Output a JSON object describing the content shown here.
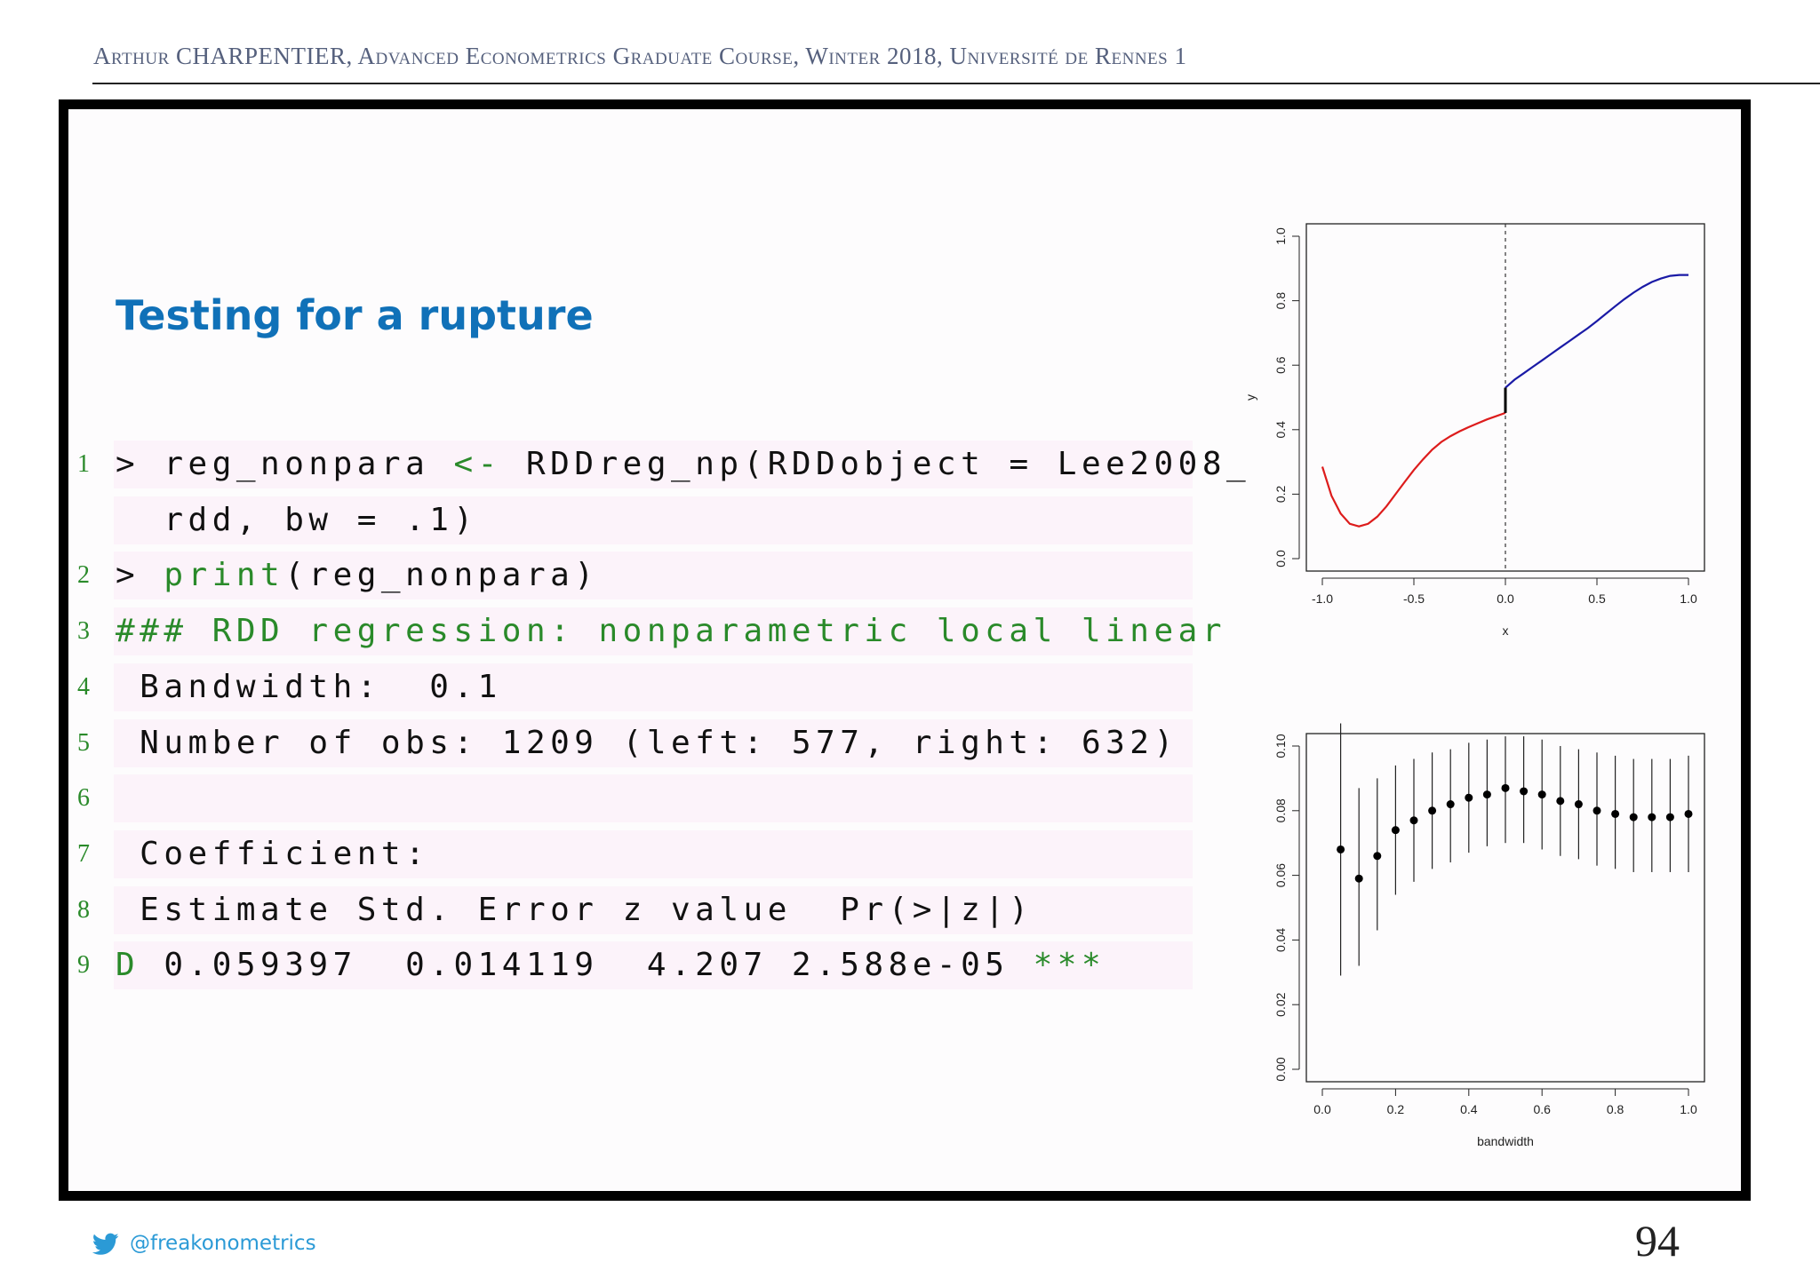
{
  "header": {
    "text": "Arthur CHARPENTIER, Advanced Econometrics Graduate Course, Winter 2018, Université de Rennes 1"
  },
  "slide": {
    "title": "Testing for a rupture"
  },
  "code": {
    "lines": [
      {
        "number": "1",
        "segments": [
          {
            "t": "> reg_nonpara ",
            "c": "plain"
          },
          {
            "t": "<-",
            "c": "kw"
          },
          {
            "t": " RDDreg_np(RDDobject = Lee2008_",
            "c": "plain"
          }
        ]
      },
      {
        "number": "",
        "segments": [
          {
            "t": "  rdd, bw = .1)",
            "c": "plain"
          }
        ]
      },
      {
        "number": "2",
        "segments": [
          {
            "t": "> ",
            "c": "plain"
          },
          {
            "t": "print",
            "c": "kw"
          },
          {
            "t": "(reg_nonpara)",
            "c": "plain"
          }
        ]
      },
      {
        "number": "3",
        "segments": [
          {
            "t": "### RDD regression: nonparametric local linear",
            "c": "cm"
          }
        ]
      },
      {
        "number": "4",
        "segments": [
          {
            "t": " Bandwidth:  0.1",
            "c": "plain"
          }
        ]
      },
      {
        "number": "5",
        "segments": [
          {
            "t": " Number of obs: 1209 (left: 577, right: 632)",
            "c": "plain"
          }
        ]
      },
      {
        "number": "6",
        "segments": []
      },
      {
        "number": "7",
        "segments": [
          {
            "t": " Coefficient:",
            "c": "plain"
          }
        ]
      },
      {
        "number": "8",
        "segments": [
          {
            "t": " Estimate Std. Error z value  Pr(>|z|)",
            "c": "plain"
          }
        ]
      },
      {
        "number": "9",
        "segments": [
          {
            "t": "D",
            "c": "kw"
          },
          {
            "t": " 0.059397  0.014119  4.207 2.588e-05 ",
            "c": "plain"
          },
          {
            "t": "***",
            "c": "kw"
          }
        ]
      }
    ]
  },
  "colors": {
    "left_curve": "#dd1c1c",
    "right_curve": "#1a1aa6",
    "points": "#000000",
    "title": "#1071b8",
    "code_green": "#2a8a2a"
  },
  "chart_data": [
    {
      "type": "line",
      "xlabel": "x",
      "ylabel": "y",
      "xlim": [
        -1.0,
        1.0
      ],
      "ylim": [
        0.0,
        1.0
      ],
      "x_ticks": [
        "-1.0",
        "-0.5",
        "0.0",
        "0.5",
        "1.0"
      ],
      "y_ticks": [
        "0.0",
        "0.2",
        "0.4",
        "0.6",
        "0.8",
        "1.0"
      ],
      "cutoff": 0.0,
      "series": [
        {
          "x": [
            -1.0,
            -0.95,
            -0.9,
            -0.85,
            -0.8,
            -0.75,
            -0.7,
            -0.65,
            -0.6,
            -0.55,
            -0.5,
            -0.45,
            -0.4,
            -0.35,
            -0.3,
            -0.25,
            -0.2,
            -0.15,
            -0.1,
            -0.05,
            0.0
          ],
          "y": [
            0.285,
            0.195,
            0.14,
            0.108,
            0.1,
            0.108,
            0.13,
            0.162,
            0.2,
            0.238,
            0.275,
            0.308,
            0.338,
            0.362,
            0.38,
            0.395,
            0.408,
            0.42,
            0.432,
            0.442,
            0.452
          ]
        },
        {
          "x": [
            0.0,
            0.05,
            0.1,
            0.15,
            0.2,
            0.25,
            0.3,
            0.35,
            0.4,
            0.45,
            0.5,
            0.55,
            0.6,
            0.65,
            0.7,
            0.75,
            0.8,
            0.85,
            0.9,
            0.95,
            1.0
          ],
          "y": [
            0.53,
            0.555,
            0.575,
            0.595,
            0.615,
            0.635,
            0.655,
            0.675,
            0.695,
            0.715,
            0.737,
            0.76,
            0.783,
            0.805,
            0.825,
            0.843,
            0.858,
            0.869,
            0.877,
            0.88,
            0.88
          ]
        }
      ]
    },
    {
      "type": "scatter",
      "xlabel": "bandwidth",
      "ylabel": "",
      "xlim": [
        0.0,
        1.0
      ],
      "ylim": [
        0.0,
        0.1
      ],
      "x_ticks": [
        "0.0",
        "0.2",
        "0.4",
        "0.6",
        "0.8",
        "1.0"
      ],
      "y_ticks": [
        "0.00",
        "0.02",
        "0.04",
        "0.06",
        "0.08",
        "0.10"
      ],
      "points": [
        {
          "x": 0.05,
          "y": 0.068,
          "lo": 0.029,
          "hi": 0.107
        },
        {
          "x": 0.1,
          "y": 0.059,
          "lo": 0.032,
          "hi": 0.087
        },
        {
          "x": 0.15,
          "y": 0.066,
          "lo": 0.043,
          "hi": 0.09
        },
        {
          "x": 0.2,
          "y": 0.074,
          "lo": 0.054,
          "hi": 0.094
        },
        {
          "x": 0.25,
          "y": 0.077,
          "lo": 0.058,
          "hi": 0.096
        },
        {
          "x": 0.3,
          "y": 0.08,
          "lo": 0.062,
          "hi": 0.098
        },
        {
          "x": 0.35,
          "y": 0.082,
          "lo": 0.064,
          "hi": 0.099
        },
        {
          "x": 0.4,
          "y": 0.084,
          "lo": 0.067,
          "hi": 0.101
        },
        {
          "x": 0.45,
          "y": 0.085,
          "lo": 0.069,
          "hi": 0.102
        },
        {
          "x": 0.5,
          "y": 0.087,
          "lo": 0.07,
          "hi": 0.103
        },
        {
          "x": 0.55,
          "y": 0.086,
          "lo": 0.07,
          "hi": 0.103
        },
        {
          "x": 0.6,
          "y": 0.085,
          "lo": 0.068,
          "hi": 0.102
        },
        {
          "x": 0.65,
          "y": 0.083,
          "lo": 0.066,
          "hi": 0.1
        },
        {
          "x": 0.7,
          "y": 0.082,
          "lo": 0.065,
          "hi": 0.099
        },
        {
          "x": 0.75,
          "y": 0.08,
          "lo": 0.063,
          "hi": 0.098
        },
        {
          "x": 0.8,
          "y": 0.079,
          "lo": 0.062,
          "hi": 0.097
        },
        {
          "x": 0.85,
          "y": 0.078,
          "lo": 0.061,
          "hi": 0.096
        },
        {
          "x": 0.9,
          "y": 0.078,
          "lo": 0.061,
          "hi": 0.096
        },
        {
          "x": 0.95,
          "y": 0.078,
          "lo": 0.061,
          "hi": 0.096
        },
        {
          "x": 1.0,
          "y": 0.079,
          "lo": 0.061,
          "hi": 0.097
        }
      ]
    }
  ],
  "footer": {
    "handle": "@freakonometrics",
    "page": "94"
  }
}
